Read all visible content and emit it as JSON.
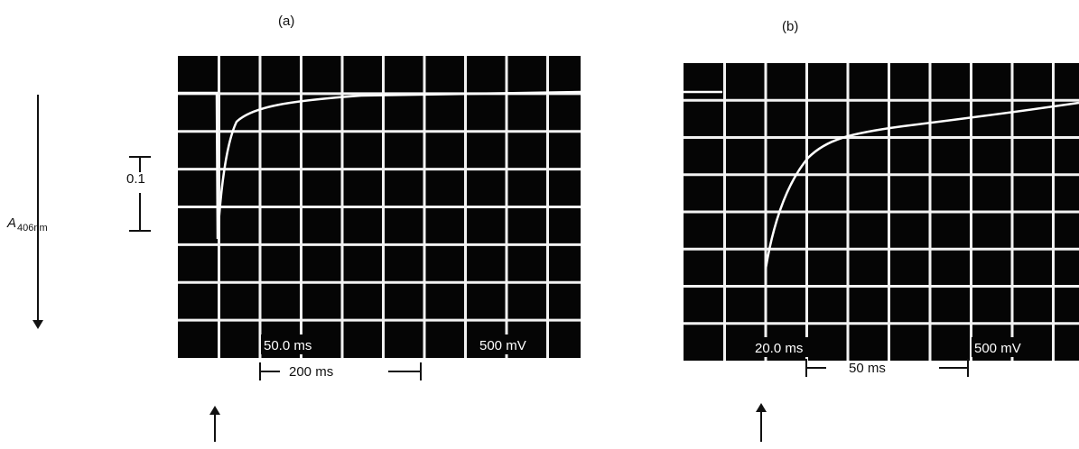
{
  "y_axis": {
    "label": "A",
    "subscript": "406nm",
    "scale": "0.1"
  },
  "panels": [
    {
      "label": "(a)",
      "time_per_div": "50.0 ms",
      "volts_per_div": "500 mV",
      "scale_bar": "200 ms"
    },
    {
      "label": "(b)",
      "time_per_div": "20.0 ms",
      "volts_per_div": "500 mV",
      "scale_bar": "50 ms"
    }
  ]
}
